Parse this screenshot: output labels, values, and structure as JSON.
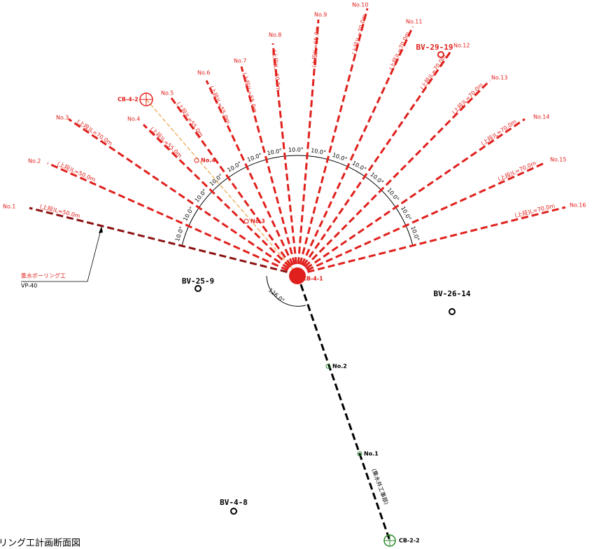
{
  "title": "リング工計画断面図",
  "leader": {
    "name": "集水ボーリング工",
    "spec": "VP-40"
  },
  "drains": [
    {
      "no": "No.1",
      "label": "(上段)L=50.0m"
    },
    {
      "no": "No.2",
      "label": "(上段)L=50.0m"
    },
    {
      "no": "No.3",
      "label": "(上段)L=70.0m"
    },
    {
      "no": "No.4",
      "label": "(上段)L=55.0m"
    },
    {
      "no": "No.5",
      "label": "(上段)L=55.0m"
    },
    {
      "no": "No.6",
      "label": "(上段)L=55.0m"
    },
    {
      "no": "No.7",
      "label": "(上段)L=55.0m"
    },
    {
      "no": "No.8",
      "label": "(上段)L=60.0m"
    },
    {
      "no": "No.9",
      "label": "(上段)L=65.0m"
    },
    {
      "no": "No.10",
      "label": "(上段)L=70.0m"
    },
    {
      "no": "No.11",
      "label": "(上段)L=70.0m"
    },
    {
      "no": "No.12",
      "label": "(上段)L=70.0m"
    },
    {
      "no": "No.13",
      "label": "(上段)L=70.0m"
    },
    {
      "no": "No.14",
      "label": "(上段)L=70.0m"
    },
    {
      "no": "No.15",
      "label": "(上段)L=70.0m"
    },
    {
      "no": "No.16",
      "label": "(上段)L=70.0m"
    }
  ],
  "angles": [
    "10.0°",
    "10.0°",
    "10.0°",
    "10.0°",
    "10.0°",
    "10.0°",
    "10.0°",
    "10.0°",
    "10.0°",
    "10.0°",
    "10.0°",
    "10.0°",
    "10.0°",
    "10.0°",
    "10.0°"
  ],
  "turn_angle": "126.0°",
  "wells": [
    "CB-4-1",
    "CB-4-2",
    "CB-2-2"
  ],
  "boreholes": [
    "BV-25-9",
    "BV-26-14",
    "BV-4-8",
    "BV-29-19"
  ],
  "points": [
    "No.1",
    "No.2",
    "No.3",
    "No.4"
  ],
  "route_label": "(集水井工事部)"
}
